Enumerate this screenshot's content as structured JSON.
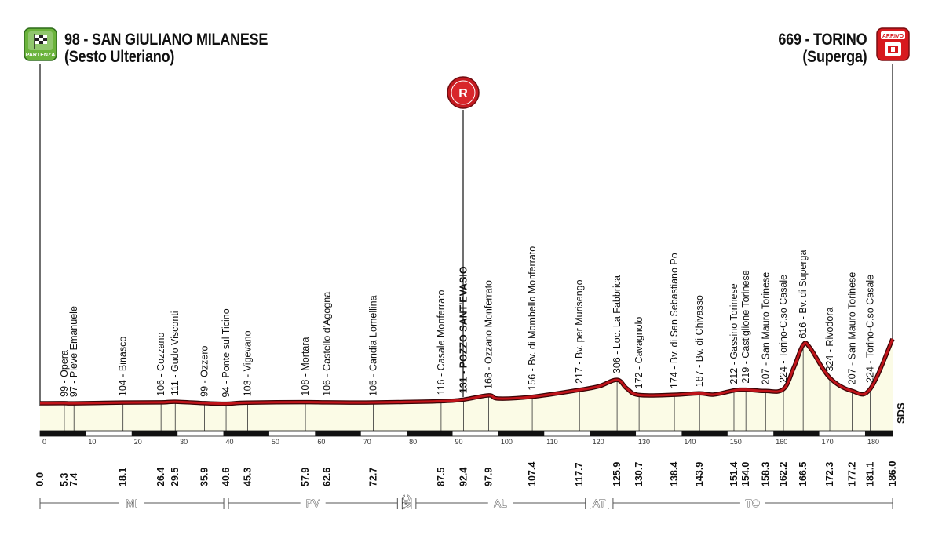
{
  "header": {
    "start_title": "98 - SAN GIULIANO MILANESE",
    "start_subtitle": "(Sesto Ulteriano)",
    "start_badge": "PARTENZA",
    "finish_title": "669 - TORINO",
    "finish_subtitle": "(Superga)",
    "finish_badge": "ARRIVO",
    "refuel_badge": "R",
    "logo": "SDS"
  },
  "colors": {
    "profile_line": "#c0141a",
    "profile_fill": "#fbfbe6",
    "start_badge": "#6bb33c",
    "finish_badge": "#d7191e"
  },
  "chart_data": {
    "type": "area",
    "xlabel": "",
    "ylabel": "",
    "xlim": [
      0,
      186
    ],
    "ylim": [
      0,
      669
    ],
    "axis_ticks": [
      0,
      10,
      20,
      30,
      40,
      50,
      60,
      70,
      80,
      90,
      100,
      110,
      120,
      130,
      140,
      150,
      160,
      170,
      180
    ],
    "profile": [
      [
        0,
        98
      ],
      [
        5.3,
        99
      ],
      [
        7.4,
        97
      ],
      [
        18.1,
        104
      ],
      [
        26.4,
        106
      ],
      [
        29.5,
        111
      ],
      [
        35.9,
        99
      ],
      [
        40.6,
        94
      ],
      [
        45.3,
        103
      ],
      [
        57.9,
        108
      ],
      [
        62.6,
        106
      ],
      [
        72.7,
        105
      ],
      [
        87.5,
        116
      ],
      [
        92.4,
        131
      ],
      [
        97.9,
        168
      ],
      [
        100,
        140
      ],
      [
        107.4,
        156
      ],
      [
        117.7,
        217
      ],
      [
        122,
        250
      ],
      [
        125.9,
        306
      ],
      [
        128,
        230
      ],
      [
        130.7,
        172
      ],
      [
        138.4,
        174
      ],
      [
        143.9,
        187
      ],
      [
        147,
        175
      ],
      [
        151.4,
        212
      ],
      [
        154,
        219
      ],
      [
        158.3,
        207
      ],
      [
        162.2,
        224
      ],
      [
        164.5,
        420
      ],
      [
        166.5,
        616
      ],
      [
        168,
        590
      ],
      [
        172.3,
        324
      ],
      [
        177.2,
        207
      ],
      [
        181.1,
        224
      ],
      [
        186,
        669
      ]
    ],
    "waypoints": [
      {
        "km": "0.0",
        "x": 0,
        "name": "",
        "end": true
      },
      {
        "km": "5.3",
        "x": 5.3,
        "name": "99 - Opera"
      },
      {
        "km": "7.4",
        "x": 7.4,
        "name": "97 - Pieve Emanuele"
      },
      {
        "km": "18.1",
        "x": 18.1,
        "name": "104 - Binasco"
      },
      {
        "km": "26.4",
        "x": 26.4,
        "name": "106 - Cozzano"
      },
      {
        "km": "29.5",
        "x": 29.5,
        "name": "111 - Gudo Visconti"
      },
      {
        "km": "35.9",
        "x": 35.9,
        "name": "99 - Ozzero"
      },
      {
        "km": "40.6",
        "x": 40.6,
        "name": "94 - Ponte sul Ticino"
      },
      {
        "km": "45.3",
        "x": 45.3,
        "name": "103 - Vigevano"
      },
      {
        "km": "57.9",
        "x": 57.9,
        "name": "108 - Mortara"
      },
      {
        "km": "62.6",
        "x": 62.6,
        "name": "106 - Castello d'Agogna"
      },
      {
        "km": "72.7",
        "x": 72.7,
        "name": "105 - Candia Lomellina"
      },
      {
        "km": "87.5",
        "x": 87.5,
        "name": "116 - Casale Monferrato"
      },
      {
        "km": "92.4",
        "x": 92.4,
        "name": "131 - POZZO SANT'EVASIO",
        "bold": true
      },
      {
        "km": "97.9",
        "x": 97.9,
        "name": "168 - Ozzano Monferrato"
      },
      {
        "km": "107.4",
        "x": 107.4,
        "name": "156 - Bv. di Mombello Monferrato"
      },
      {
        "km": "117.7",
        "x": 117.7,
        "name": "217 - Bv. per Murisengo"
      },
      {
        "km": "125.9",
        "x": 125.9,
        "name": "306 - Loc. La Fabbrica"
      },
      {
        "km": "130.7",
        "x": 130.7,
        "name": "172 - Cavagnolo"
      },
      {
        "km": "138.4",
        "x": 138.4,
        "name": "174 - Bv. di San Sebastiano Po"
      },
      {
        "km": "143.9",
        "x": 143.9,
        "name": "187 - Bv. di Chivasso"
      },
      {
        "km": "151.4",
        "x": 151.4,
        "name": "212 - Gassino Torinese"
      },
      {
        "km": "154.0",
        "x": 154.0,
        "name": "219 - Castiglione Torinese"
      },
      {
        "km": "158.3",
        "x": 158.3,
        "name": "207 - San Mauro Torinese"
      },
      {
        "km": "162.2",
        "x": 162.2,
        "name": "224 - Torino-C.so Casale"
      },
      {
        "km": "166.5",
        "x": 166.5,
        "name": "616 - Bv. di Superga"
      },
      {
        "km": "172.3",
        "x": 172.3,
        "name": "324 - Rivodora"
      },
      {
        "km": "177.2",
        "x": 177.2,
        "name": "207 - San Mauro Torinese"
      },
      {
        "km": "181.1",
        "x": 181.1,
        "name": "224 - Torino-C.so Casale"
      },
      {
        "km": "186.0",
        "x": 186.0,
        "name": "",
        "end": true
      }
    ],
    "regions": [
      {
        "name": "MI",
        "start": 0,
        "end": 40.6
      },
      {
        "name": "PV",
        "start": 40.6,
        "end": 78.5
      },
      {
        "name": "VC",
        "start": 78.5,
        "end": 81.5,
        "vertical": true
      },
      {
        "name": "AL",
        "start": 81.5,
        "end": 119.5
      },
      {
        "name": "AT",
        "start": 119.5,
        "end": 124.5
      },
      {
        "name": "TO",
        "start": 124.5,
        "end": 186
      }
    ],
    "refuel_km": 92.4
  }
}
